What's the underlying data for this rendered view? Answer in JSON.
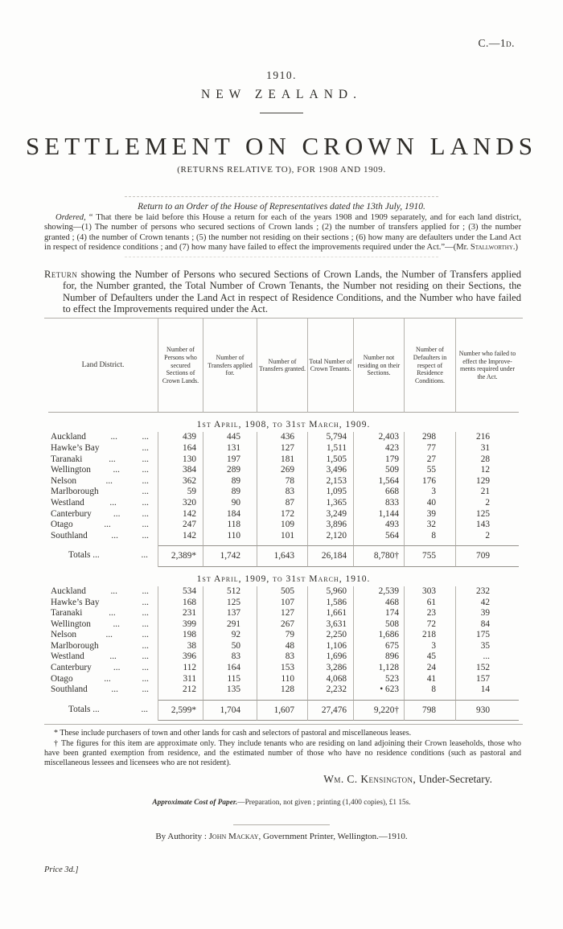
{
  "header": {
    "doc_code": "C.—1d."
  },
  "masthead": {
    "year": "1910.",
    "country": "NEW ZEALAND.",
    "title": "SETTLEMENT ON CROWN LANDS",
    "subtitle": "(RETURNS RELATIVE TO), FOR 1908 AND 1909."
  },
  "preface": {
    "order_line": "Return to an Order of the House of Representatives dated the 13th July, 1910.",
    "ordered_lead": "Ordered,",
    "ordered_body": " “ That there be laid before this House a return for each of the years 1908 and 1909 separately, and for each land district, showing—(1) The number of persons who secured sections of Crown lands ; (2) the number of transfers applied for ; (3) the number granted ; (4) the number of Crown tenants ; (5) the number not residing on their sections ; (6) how many are defaulters under the Land Act in respect of residence conditions ; and (7) how many have failed to effect the improvements required under the Act.”",
    "credit_prefix": "—(Mr. ",
    "credit_name": "Stallworthy",
    "credit_suffix": ".)"
  },
  "return_note": {
    "lead": "Return",
    "body": " showing the Number of Persons who secured Sections of Crown Lands, the Number of Transfers applied for, the Number granted, the Total Number of Crown Tenants, the Number not residing on their Sections, the Number of Defaulters under the Land Act in respect of Residence Conditions, and the Number who have failed to effect the Improvements required under the Act."
  },
  "table": {
    "headers": [
      "Land District.",
      "Number of Persons who secured Sections of Crown Lands.",
      "Number of Transfers applied for.",
      "Number of Transfers granted.",
      "Total Number of Crown Tenants.",
      "Number not residing on their Sections.",
      "Number of Defaulters in respect of Residence Conditions.",
      "Number who failed to effect the Improve-ments required under the Act."
    ],
    "sections": [
      {
        "caption": "1st April, 1908, to 31st March, 1909.",
        "rows": [
          {
            "district": "Auckland",
            "dots": [
              "...",
              "..."
            ],
            "values": [
              "439",
              "445",
              "436",
              "5,794",
              "2,403",
              "298",
              "216"
            ]
          },
          {
            "district": "Hawke’s Bay",
            "dots": [
              "..."
            ],
            "values": [
              "164",
              "131",
              "127",
              "1,511",
              "423",
              "77",
              "31"
            ]
          },
          {
            "district": "Taranaki",
            "dots": [
              "...",
              "..."
            ],
            "values": [
              "130",
              "197",
              "181",
              "1,505",
              "179",
              "27",
              "28"
            ]
          },
          {
            "district": "Wellington",
            "dots": [
              "...",
              "..."
            ],
            "values": [
              "384",
              "289",
              "269",
              "3,496",
              "509",
              "55",
              "12"
            ]
          },
          {
            "district": "Nelson",
            "dots": [
              "...",
              "..."
            ],
            "values": [
              "362",
              "89",
              "78",
              "2,153",
              "1,564",
              "176",
              "129"
            ]
          },
          {
            "district": "Marlborough",
            "dots": [
              "..."
            ],
            "values": [
              "59",
              "89",
              "83",
              "1,095",
              "668",
              "3",
              "21"
            ]
          },
          {
            "district": "Westland",
            "dots": [
              "...",
              "..."
            ],
            "values": [
              "320",
              "90",
              "87",
              "1,365",
              "833",
              "40",
              "2"
            ]
          },
          {
            "district": "Canterbury",
            "dots": [
              "...",
              "..."
            ],
            "values": [
              "142",
              "184",
              "172",
              "3,249",
              "1,144",
              "39",
              "125"
            ]
          },
          {
            "district": "Otago",
            "dots": [
              "...",
              "..."
            ],
            "values": [
              "247",
              "118",
              "109",
              "3,896",
              "493",
              "32",
              "143"
            ]
          },
          {
            "district": "Southland",
            "dots": [
              "...",
              "..."
            ],
            "values": [
              "142",
              "110",
              "101",
              "2,120",
              "564",
              "8",
              "2"
            ]
          }
        ],
        "totals": {
          "label": "Totals ...",
          "dots": [
            "..."
          ],
          "values": [
            "2,389*",
            "1,742",
            "1,643",
            "26,184",
            "8,780†",
            "755",
            "709"
          ]
        }
      },
      {
        "caption": "1st April, 1909, to 31st March, 1910.",
        "rows": [
          {
            "district": "Auckland",
            "dots": [
              "...",
              "..."
            ],
            "values": [
              "534",
              "512",
              "505",
              "5,960",
              "2,539",
              "303",
              "232"
            ]
          },
          {
            "district": "Hawke’s Bay",
            "dots": [
              "..."
            ],
            "values": [
              "168",
              "125",
              "107",
              "1,586",
              "468",
              "61",
              "42"
            ]
          },
          {
            "district": "Taranaki",
            "dots": [
              "...",
              "..."
            ],
            "values": [
              "231",
              "137",
              "127",
              "1,661",
              "174",
              "23",
              "39"
            ]
          },
          {
            "district": "Wellington",
            "dots": [
              "...",
              "..."
            ],
            "values": [
              "399",
              "291",
              "267",
              "3,631",
              "508",
              "72",
              "84"
            ]
          },
          {
            "district": "Nelson",
            "dots": [
              "...",
              "..."
            ],
            "values": [
              "198",
              "92",
              "79",
              "2,250",
              "1,686",
              "218",
              "175"
            ]
          },
          {
            "district": "Marlborough",
            "dots": [
              "..."
            ],
            "values": [
              "38",
              "50",
              "48",
              "1,106",
              "675",
              "3",
              "35"
            ]
          },
          {
            "district": "Westland",
            "dots": [
              "...",
              "..."
            ],
            "values": [
              "396",
              "83",
              "83",
              "1,696",
              "896",
              "45",
              "..."
            ]
          },
          {
            "district": "Canterbury",
            "dots": [
              "...",
              "..."
            ],
            "values": [
              "112",
              "164",
              "153",
              "3,286",
              "1,128",
              "24",
              "152"
            ]
          },
          {
            "district": "Otago",
            "dots": [
              "...",
              "..."
            ],
            "values": [
              "311",
              "115",
              "110",
              "4,068",
              "523",
              "41",
              "157"
            ]
          },
          {
            "district": "Southland",
            "dots": [
              "...",
              "..."
            ],
            "values": [
              "212",
              "135",
              "128",
              "2,232",
              "• 623",
              "8",
              "14"
            ]
          }
        ],
        "totals": {
          "label": "Totals ...",
          "dots": [
            "..."
          ],
          "values": [
            "2,599*",
            "1,704",
            "1,607",
            "27,476",
            "9,220†",
            "798",
            "930"
          ]
        }
      }
    ]
  },
  "footnotes": {
    "star": "* These include purchasers of town and other lands for cash and selectors of pastoral and miscellaneous leases.",
    "dagger": "† The figures for this item are approximate only.  They include tenants who are residing on land adjoining their Crown leaseholds, those who have been granted exemption from residence, and the estimated number of those who have no residence conditions (such as pastoral and miscellaneous lessees and licensees who are not resident)."
  },
  "signature": {
    "name": "Wm. C. Kensington,",
    "role": " Under-Secretary."
  },
  "cost_note": {
    "lead": "Approximate Cost of Paper.",
    "body": "—Preparation, not given ; printing (1,400 copies), £1 15s."
  },
  "imprint": {
    "authority_prefix": "By Authority : ",
    "printer_name": "John Mackay",
    "authority_suffix": ", Government Printer, Wellington.—1910.",
    "price": "Price 3d.]"
  }
}
